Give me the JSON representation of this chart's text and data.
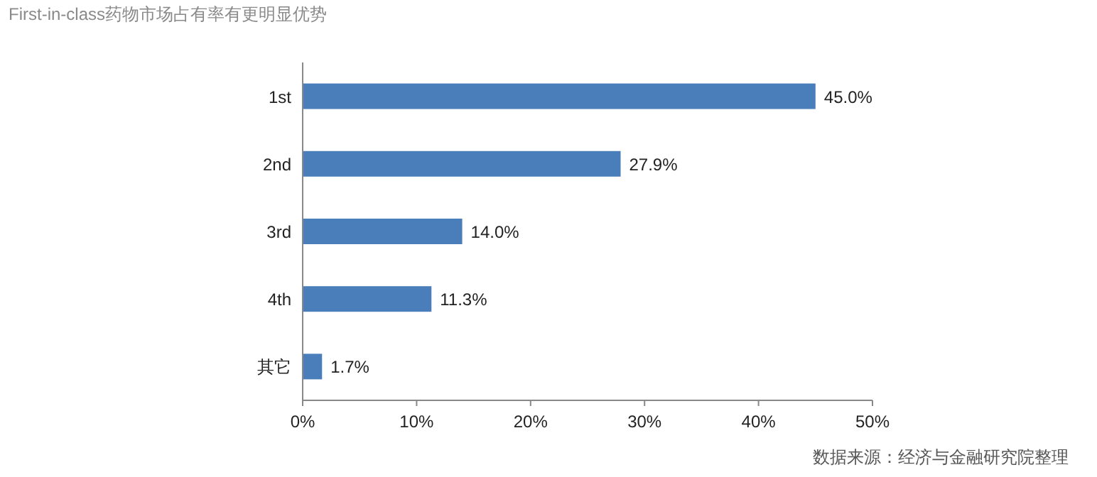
{
  "chart_data": {
    "type": "bar",
    "orientation": "horizontal",
    "title": "First-in-class药物市场占有率有更明显优势",
    "categories": [
      "1st",
      "2nd",
      "3rd",
      "4th",
      "其它"
    ],
    "values": [
      45.0,
      27.9,
      14.0,
      11.3,
      1.7
    ],
    "value_labels": [
      "45.0%",
      "27.9%",
      "14.0%",
      "11.3%",
      "1.7%"
    ],
    "color": "#4a7ebb",
    "xlim": [
      0,
      50
    ],
    "xticks": [
      {
        "value": 0,
        "label": "0%"
      },
      {
        "value": 10,
        "label": "10%"
      },
      {
        "value": 20,
        "label": "20%"
      },
      {
        "value": 30,
        "label": "30%"
      },
      {
        "value": 40,
        "label": "40%"
      },
      {
        "value": 50,
        "label": "50%"
      }
    ],
    "annotations": [
      "数据来源：经济与金融研究院整理"
    ]
  }
}
